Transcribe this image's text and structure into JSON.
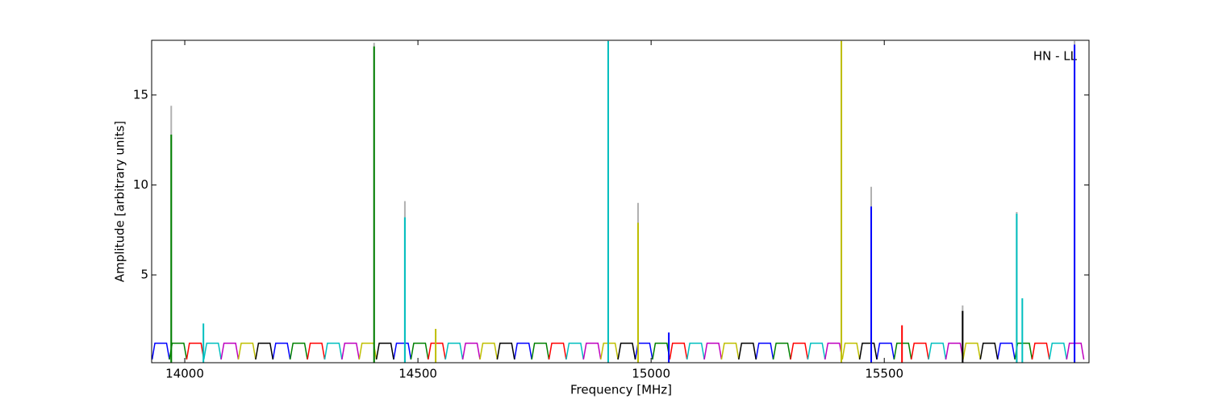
{
  "chart_data": {
    "type": "line",
    "xlabel": "Frequency [MHz]",
    "ylabel": "Amplitude [arbitrary units]",
    "annotation": "HN - LL",
    "xlim": [
      13929,
      15939
    ],
    "ylim": [
      0.12,
      18.04
    ],
    "xticks": [
      14000,
      14500,
      15000,
      15500
    ],
    "yticks": [
      5,
      10,
      15
    ],
    "series": [
      {
        "color": "#0000ff",
        "x": [
          13930,
          13936,
          13961,
          13967,
          null,
          14189,
          14195,
          14220,
          14226,
          null,
          14448,
          14454,
          14479,
          14485,
          null,
          14707,
          14713,
          14738,
          14744,
          null,
          14966,
          14972,
          14997,
          15003,
          null,
          15225,
          15231,
          15256,
          15262,
          null,
          15484,
          15490,
          15515,
          15521,
          null,
          15743,
          15749,
          15774,
          15780
        ],
        "values": [
          0.3,
          1.2,
          1.2,
          0.3,
          null,
          0.3,
          1.2,
          1.2,
          0.3,
          null,
          0.3,
          1.2,
          1.2,
          0.3,
          null,
          0.3,
          1.2,
          1.2,
          0.3,
          null,
          0.3,
          1.2,
          1.2,
          0.3,
          null,
          0.3,
          1.2,
          1.2,
          0.3,
          null,
          0.3,
          1.2,
          1.2,
          0.3,
          null,
          0.3,
          1.2,
          1.2,
          0.3
        ]
      },
      {
        "color": "#008000",
        "x": [
          13967,
          13973,
          13998,
          14004,
          null,
          14226,
          14232,
          14257,
          14263,
          null,
          14485,
          14491,
          14516,
          14522,
          null,
          14744,
          14750,
          14775,
          14781,
          null,
          15003,
          15009,
          15034,
          15040,
          null,
          15262,
          15268,
          15293,
          15299,
          null,
          15521,
          15527,
          15552,
          15558,
          null,
          15780,
          15786,
          15811,
          15817
        ],
        "values": [
          0.3,
          1.2,
          1.2,
          0.3,
          null,
          0.3,
          1.2,
          1.2,
          0.3,
          null,
          0.3,
          1.2,
          1.2,
          0.3,
          null,
          0.3,
          1.2,
          1.2,
          0.3,
          null,
          0.3,
          1.2,
          1.2,
          0.3,
          null,
          0.3,
          1.2,
          1.2,
          0.3,
          null,
          0.3,
          1.2,
          1.2,
          0.3,
          null,
          0.3,
          1.2,
          1.2,
          0.3
        ]
      },
      {
        "color": "#ff0000",
        "x": [
          14004,
          14010,
          14035,
          14041,
          null,
          14263,
          14269,
          14294,
          14300,
          null,
          14522,
          14528,
          14553,
          14559,
          null,
          14781,
          14787,
          14812,
          14818,
          null,
          15040,
          15046,
          15071,
          15077,
          null,
          15299,
          15305,
          15330,
          15336,
          null,
          15558,
          15564,
          15589,
          15595,
          null,
          15817,
          15823,
          15848,
          15854
        ],
        "values": [
          0.3,
          1.2,
          1.2,
          0.3,
          null,
          0.3,
          1.2,
          1.2,
          0.3,
          null,
          0.3,
          1.2,
          1.2,
          0.3,
          null,
          0.3,
          1.2,
          1.2,
          0.3,
          null,
          0.3,
          1.2,
          1.2,
          0.3,
          null,
          0.3,
          1.2,
          1.2,
          0.3,
          null,
          0.3,
          1.2,
          1.2,
          0.3,
          null,
          0.3,
          1.2,
          1.2,
          0.3
        ]
      },
      {
        "color": "#00bfbf",
        "x": [
          14041,
          14047,
          14072,
          14078,
          null,
          14300,
          14306,
          14331,
          14337,
          null,
          14559,
          14565,
          14590,
          14596,
          null,
          14818,
          14824,
          14849,
          14855,
          null,
          15077,
          15083,
          15108,
          15114,
          null,
          15336,
          15342,
          15367,
          15373,
          null,
          15595,
          15601,
          15626,
          15632,
          null,
          15854,
          15860,
          15885,
          15891
        ],
        "values": [
          0.3,
          1.2,
          1.2,
          0.3,
          null,
          0.3,
          1.2,
          1.2,
          0.3,
          null,
          0.3,
          1.2,
          1.2,
          0.3,
          null,
          0.3,
          1.2,
          1.2,
          0.3,
          null,
          0.3,
          1.2,
          1.2,
          0.3,
          null,
          0.3,
          1.2,
          1.2,
          0.3,
          null,
          0.3,
          1.2,
          1.2,
          0.3,
          null,
          0.3,
          1.2,
          1.2,
          0.3
        ]
      },
      {
        "color": "#bf00bf",
        "x": [
          14078,
          14084,
          14109,
          14115,
          null,
          14337,
          14343,
          14368,
          14374,
          null,
          14596,
          14602,
          14627,
          14633,
          null,
          14855,
          14861,
          14886,
          14892,
          null,
          15114,
          15120,
          15145,
          15151,
          null,
          15373,
          15379,
          15404,
          15410,
          null,
          15632,
          15638,
          15663,
          15669,
          null,
          15891,
          15897,
          15922,
          15928
        ],
        "values": [
          0.3,
          1.2,
          1.2,
          0.3,
          null,
          0.3,
          1.2,
          1.2,
          0.3,
          null,
          0.3,
          1.2,
          1.2,
          0.3,
          null,
          0.3,
          1.2,
          1.2,
          0.3,
          null,
          0.3,
          1.2,
          1.2,
          0.3,
          null,
          0.3,
          1.2,
          1.2,
          0.3,
          null,
          0.3,
          1.2,
          1.2,
          0.3,
          null,
          0.3,
          1.2,
          1.2,
          0.3
        ]
      },
      {
        "color": "#bfbf00",
        "x": [
          14115,
          14121,
          14146,
          14152,
          null,
          14374,
          14380,
          14405,
          14411,
          null,
          14633,
          14639,
          14664,
          14670,
          null,
          14892,
          14898,
          14923,
          14929,
          null,
          15151,
          15157,
          15182,
          15188,
          null,
          15410,
          15416,
          15441,
          15447,
          null,
          15669,
          15675,
          15700,
          15706
        ],
        "values": [
          0.3,
          1.2,
          1.2,
          0.3,
          null,
          0.3,
          1.2,
          1.2,
          0.3,
          null,
          0.3,
          1.2,
          1.2,
          0.3,
          null,
          0.3,
          1.2,
          1.2,
          0.3,
          null,
          0.3,
          1.2,
          1.2,
          0.3,
          null,
          0.3,
          1.2,
          1.2,
          0.3,
          null,
          0.3,
          1.2,
          1.2,
          0.3
        ]
      },
      {
        "color": "#000000",
        "x": [
          14152,
          14158,
          14183,
          14189,
          null,
          14411,
          14417,
          14442,
          14448,
          null,
          14670,
          14676,
          14701,
          14707,
          null,
          14929,
          14935,
          14960,
          14966,
          null,
          15188,
          15194,
          15219,
          15225,
          null,
          15447,
          15453,
          15478,
          15484,
          null,
          15706,
          15712,
          15737,
          15743
        ],
        "values": [
          0.3,
          1.2,
          1.2,
          0.3,
          null,
          0.3,
          1.2,
          1.2,
          0.3,
          null,
          0.3,
          1.2,
          1.2,
          0.3,
          null,
          0.3,
          1.2,
          1.2,
          0.3,
          null,
          0.3,
          1.2,
          1.2,
          0.3,
          null,
          0.3,
          1.2,
          1.2,
          0.3,
          null,
          0.3,
          1.2,
          1.2,
          0.3
        ]
      }
    ],
    "spikes": {
      "x": [
        13971,
        14040,
        14406,
        14472,
        14538,
        14908,
        14972,
        15038,
        15408,
        15472,
        15538,
        15668,
        15784,
        15796,
        15908
      ],
      "values": [
        12.8,
        2.3,
        17.7,
        8.2,
        2.0,
        18,
        7.9,
        1.8,
        18,
        8.8,
        2.2,
        3.0,
        8.4,
        3.7,
        17.8
      ],
      "peak": [
        14.4,
        null,
        17.9,
        9.1,
        null,
        18,
        9.0,
        null,
        18,
        9.9,
        null,
        3.3,
        8.5,
        null,
        18
      ],
      "colors": [
        "#008000",
        "#00bfbf",
        "#008000",
        "#00bfbf",
        "#bfbf00",
        "#00bfbf",
        "#bfbf00",
        "#0000ff",
        "#bfbf00",
        "#0000ff",
        "#ff0000",
        "#000000",
        "#00bfbf",
        "#00bfbf",
        "#0000ff"
      ],
      "peak_color": "#b0b0b0"
    }
  }
}
